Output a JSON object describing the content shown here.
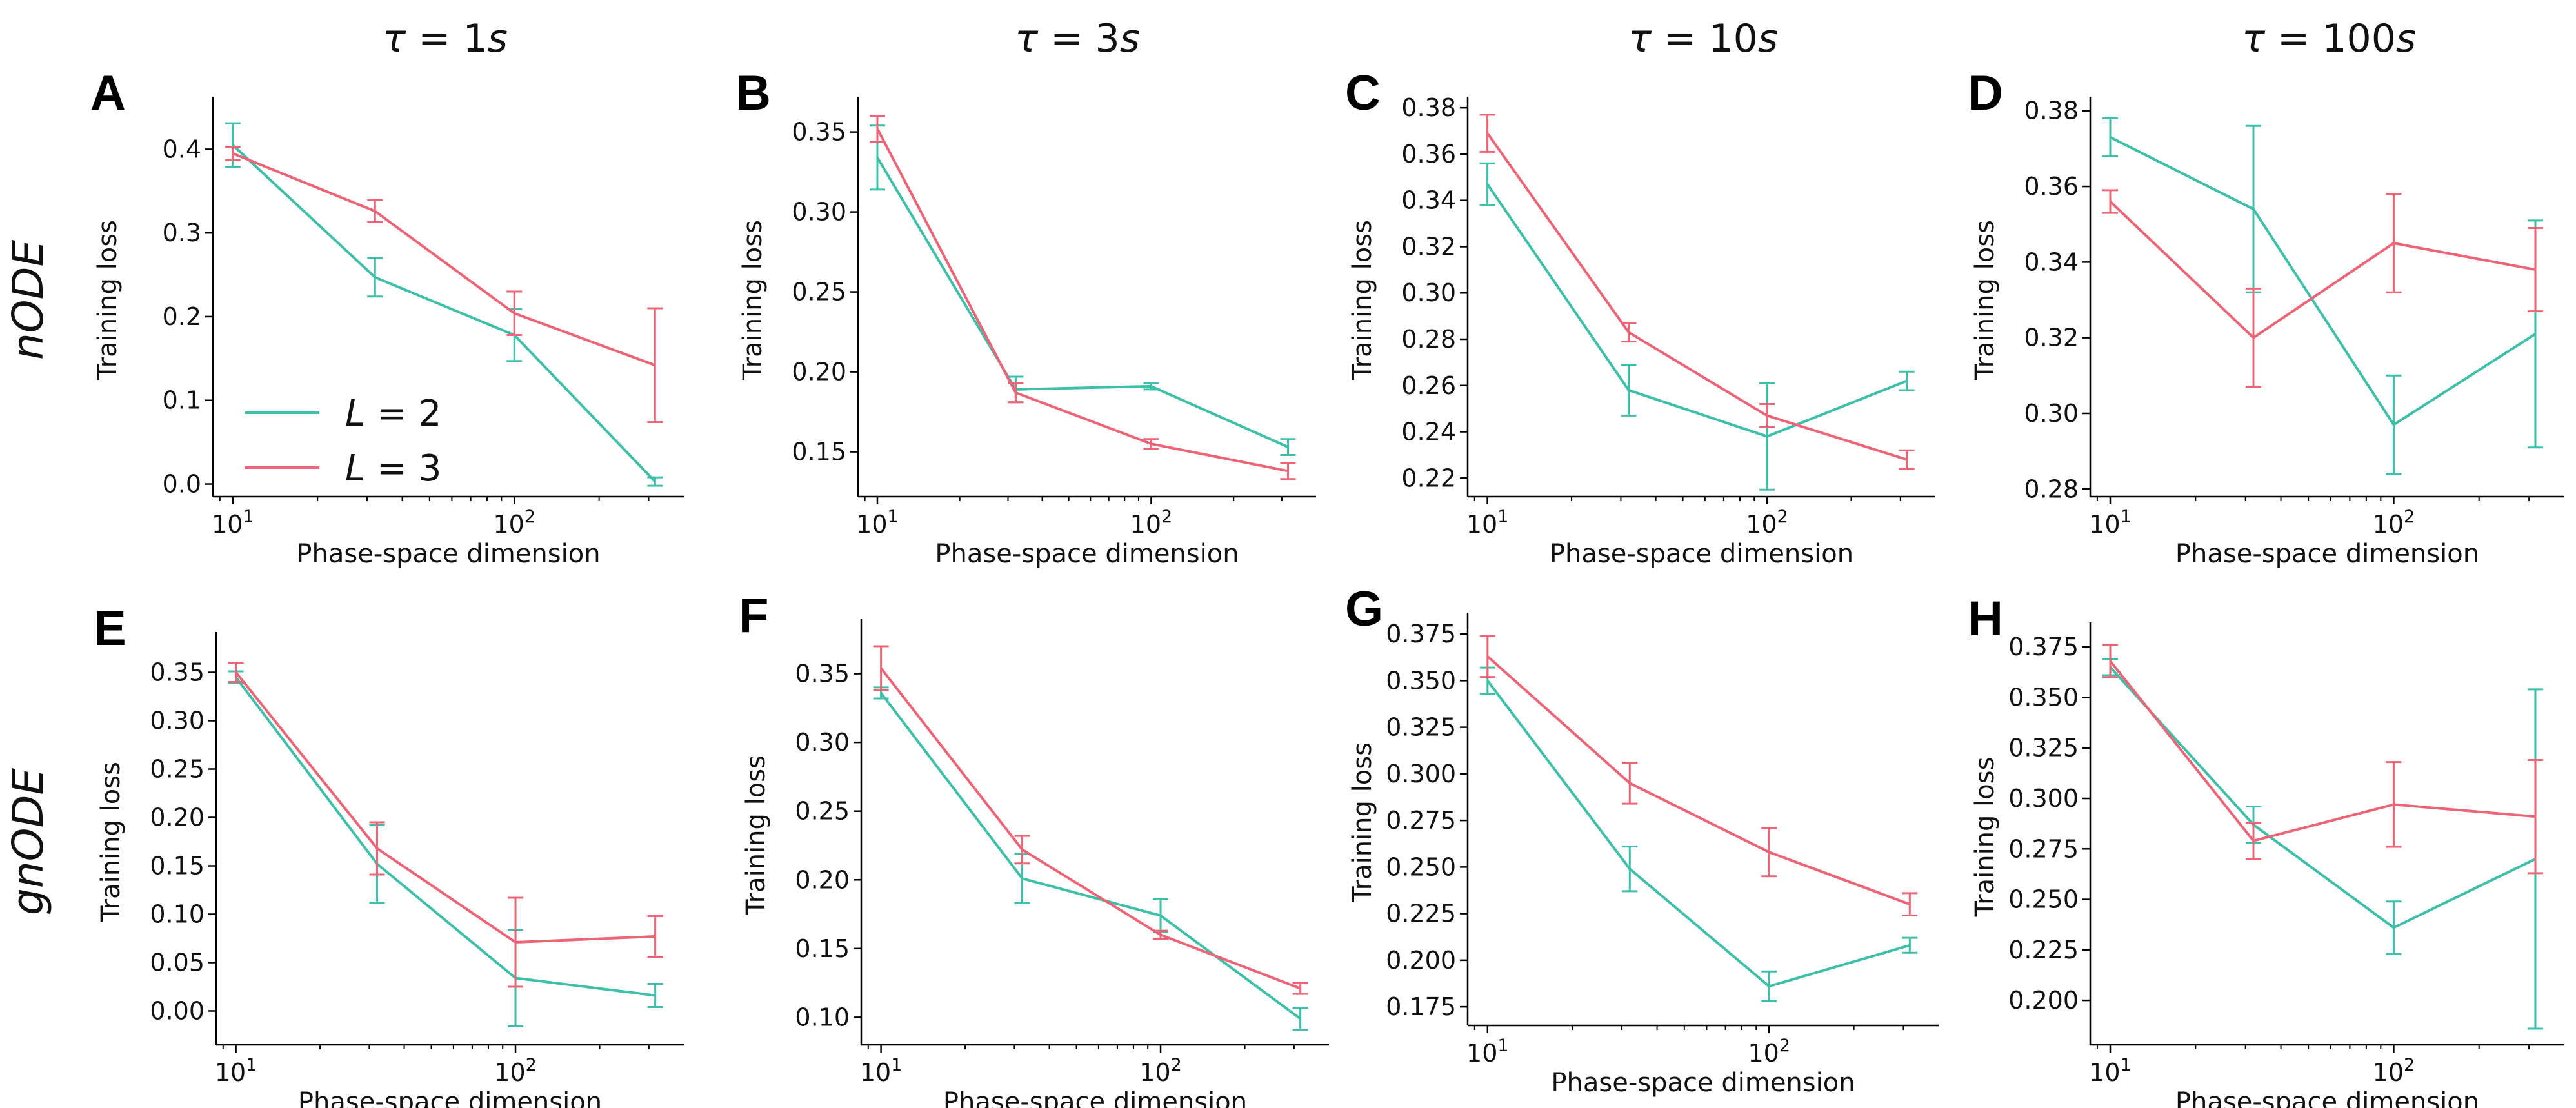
{
  "colors": {
    "series_L2": "#3dbfa8",
    "series_L3": "#ec6476",
    "axis": "#000000"
  },
  "column_titles": [
    {
      "symbol": "τ",
      "rest": " = 1",
      "unit": "s"
    },
    {
      "symbol": "τ",
      "rest": " = 3",
      "unit": "s"
    },
    {
      "symbol": "τ",
      "rest": " = 10",
      "unit": "s"
    },
    {
      "symbol": "τ",
      "rest": " = 100",
      "unit": "s"
    }
  ],
  "row_titles": [
    "nODE",
    "gnODE"
  ],
  "legend": [
    {
      "symbol": "L",
      "rest": " = 2",
      "color_key": "series_L2"
    },
    {
      "symbol": "L",
      "rest": " = 3",
      "color_key": "series_L3"
    }
  ],
  "chart_data": [
    {
      "panel": "A",
      "type": "line",
      "xscale": "log",
      "xlabel": "Phase-space dimension",
      "ylabel": "Training loss",
      "x": [
        10,
        32,
        100,
        316
      ],
      "xlim": [
        8.5,
        400
      ],
      "ylim": [
        -0.015,
        0.455
      ],
      "xticks": [
        {
          "value": 10,
          "exp": "1"
        },
        {
          "value": 100,
          "exp": "2"
        }
      ],
      "yticks": [
        "0.0",
        "0.1",
        "0.2",
        "0.3",
        "0.4"
      ],
      "legend_position": "bottom-left",
      "series": [
        {
          "name": "L = 2",
          "color_key": "series_L2",
          "values": [
            0.405,
            0.247,
            0.178,
            0.003
          ],
          "errors": [
            0.026,
            0.023,
            0.031,
            0.005
          ]
        },
        {
          "name": "L = 3",
          "color_key": "series_L3",
          "values": [
            0.395,
            0.326,
            0.204,
            0.142
          ],
          "errors": [
            0.008,
            0.013,
            0.026,
            0.068
          ]
        }
      ]
    },
    {
      "panel": "B",
      "type": "line",
      "xscale": "log",
      "xlabel": "Phase-space dimension",
      "ylabel": "Training loss",
      "x": [
        10,
        32,
        100,
        316
      ],
      "xlim": [
        8.5,
        400
      ],
      "ylim": [
        0.122,
        0.368
      ],
      "xticks": [
        {
          "value": 10,
          "exp": "1"
        },
        {
          "value": 100,
          "exp": "2"
        }
      ],
      "yticks": [
        "0.15",
        "0.20",
        "0.25",
        "0.30",
        "0.35"
      ],
      "legend_position": "",
      "series": [
        {
          "name": "L = 2",
          "color_key": "series_L2",
          "values": [
            0.334,
            0.189,
            0.191,
            0.153
          ],
          "errors": [
            0.02,
            0.008,
            0.002,
            0.005
          ]
        },
        {
          "name": "L = 3",
          "color_key": "series_L3",
          "values": [
            0.352,
            0.187,
            0.155,
            0.138
          ],
          "errors": [
            0.008,
            0.006,
            0.003,
            0.005
          ]
        }
      ]
    },
    {
      "panel": "C",
      "type": "line",
      "xscale": "log",
      "xlabel": "Phase-space dimension",
      "ylabel": "Training loss",
      "x": [
        10,
        32,
        100,
        316
      ],
      "xlim": [
        8.5,
        400
      ],
      "ylim": [
        0.212,
        0.382
      ],
      "xticks": [
        {
          "value": 10,
          "exp": "1"
        },
        {
          "value": 100,
          "exp": "2"
        }
      ],
      "yticks": [
        "0.22",
        "0.24",
        "0.26",
        "0.28",
        "0.30",
        "0.32",
        "0.34",
        "0.36",
        "0.38"
      ],
      "legend_position": "",
      "series": [
        {
          "name": "L = 2",
          "color_key": "series_L2",
          "values": [
            0.347,
            0.258,
            0.238,
            0.262
          ],
          "errors": [
            0.009,
            0.011,
            0.023,
            0.004
          ]
        },
        {
          "name": "L = 3",
          "color_key": "series_L3",
          "values": [
            0.369,
            0.283,
            0.247,
            0.228
          ],
          "errors": [
            0.008,
            0.004,
            0.005,
            0.004
          ]
        }
      ]
    },
    {
      "panel": "D",
      "type": "line",
      "xscale": "log",
      "xlabel": "Phase-space dimension",
      "ylabel": "Training loss",
      "x": [
        10,
        32,
        100,
        316
      ],
      "xlim": [
        8.5,
        400
      ],
      "ylim": [
        0.278,
        0.382
      ],
      "xticks": [
        {
          "value": 10,
          "exp": "1"
        },
        {
          "value": 100,
          "exp": "2"
        }
      ],
      "yticks": [
        "0.28",
        "0.30",
        "0.32",
        "0.34",
        "0.36",
        "0.38"
      ],
      "legend_position": "",
      "series": [
        {
          "name": "L = 2",
          "color_key": "series_L2",
          "values": [
            0.373,
            0.354,
            0.297,
            0.321
          ],
          "errors": [
            0.005,
            0.022,
            0.013,
            0.03
          ]
        },
        {
          "name": "L = 3",
          "color_key": "series_L3",
          "values": [
            0.356,
            0.32,
            0.345,
            0.338
          ],
          "errors": [
            0.003,
            0.013,
            0.013,
            0.011
          ]
        }
      ]
    },
    {
      "panel": "E",
      "type": "line",
      "xscale": "log",
      "xlabel": "Phase-space dimension",
      "ylabel": "Training loss",
      "x": [
        10,
        32,
        100,
        316
      ],
      "xlim": [
        8.5,
        400
      ],
      "ylim": [
        -0.035,
        0.385
      ],
      "xticks": [
        {
          "value": 10,
          "exp": "1"
        },
        {
          "value": 100,
          "exp": "2"
        }
      ],
      "yticks": [
        "0.00",
        "0.05",
        "0.10",
        "0.15",
        "0.20",
        "0.25",
        "0.30",
        "0.35"
      ],
      "legend_position": "",
      "series": [
        {
          "name": "L = 2",
          "color_key": "series_L2",
          "values": [
            0.345,
            0.152,
            0.034,
            0.016
          ],
          "errors": [
            0.006,
            0.04,
            0.05,
            0.012
          ]
        },
        {
          "name": "L = 3",
          "color_key": "series_L3",
          "values": [
            0.35,
            0.168,
            0.071,
            0.077
          ],
          "errors": [
            0.01,
            0.027,
            0.046,
            0.021
          ]
        }
      ]
    },
    {
      "panel": "F",
      "type": "line",
      "xscale": "log",
      "xlabel": "Phase-space dimension",
      "ylabel": "Training loss",
      "x": [
        10,
        32,
        100,
        316
      ],
      "xlim": [
        8.5,
        400
      ],
      "ylim": [
        0.08,
        0.385
      ],
      "xticks": [
        {
          "value": 10,
          "exp": "1"
        },
        {
          "value": 100,
          "exp": "2"
        }
      ],
      "yticks": [
        "0.10",
        "0.15",
        "0.20",
        "0.25",
        "0.30",
        "0.35"
      ],
      "legend_position": "",
      "series": [
        {
          "name": "L = 2",
          "color_key": "series_L2",
          "values": [
            0.336,
            0.201,
            0.174,
            0.099
          ],
          "errors": [
            0.004,
            0.018,
            0.012,
            0.008
          ]
        },
        {
          "name": "L = 3",
          "color_key": "series_L3",
          "values": [
            0.354,
            0.222,
            0.16,
            0.121
          ],
          "errors": [
            0.016,
            0.01,
            0.003,
            0.004
          ]
        }
      ]
    },
    {
      "panel": "G",
      "type": "line",
      "xscale": "log",
      "xlabel": "Phase-space dimension",
      "ylabel": "Training loss",
      "x": [
        10,
        32,
        100,
        316
      ],
      "xlim": [
        8.5,
        400
      ],
      "ylim": [
        0.165,
        0.383
      ],
      "xticks": [
        {
          "value": 10,
          "exp": "1"
        },
        {
          "value": 100,
          "exp": "2"
        }
      ],
      "yticks": [
        "0.175",
        "0.200",
        "0.225",
        "0.250",
        "0.275",
        "0.300",
        "0.325",
        "0.350",
        "0.375"
      ],
      "legend_position": "",
      "series": [
        {
          "name": "L = 2",
          "color_key": "series_L2",
          "values": [
            0.35,
            0.249,
            0.186,
            0.208
          ],
          "errors": [
            0.007,
            0.012,
            0.008,
            0.004
          ]
        },
        {
          "name": "L = 3",
          "color_key": "series_L3",
          "values": [
            0.363,
            0.295,
            0.258,
            0.23
          ],
          "errors": [
            0.011,
            0.011,
            0.013,
            0.006
          ]
        }
      ]
    },
    {
      "panel": "H",
      "type": "line",
      "xscale": "log",
      "xlabel": "Phase-space dimension",
      "ylabel": "Training loss",
      "x": [
        10,
        32,
        100,
        316
      ],
      "xlim": [
        8.5,
        400
      ],
      "ylim": [
        0.178,
        0.384
      ],
      "xticks": [
        {
          "value": 10,
          "exp": "1"
        },
        {
          "value": 100,
          "exp": "2"
        }
      ],
      "yticks": [
        "0.200",
        "0.225",
        "0.250",
        "0.275",
        "0.300",
        "0.325",
        "0.350",
        "0.375"
      ],
      "legend_position": "",
      "series": [
        {
          "name": "L = 2",
          "color_key": "series_L2",
          "values": [
            0.365,
            0.287,
            0.236,
            0.27
          ],
          "errors": [
            0.004,
            0.009,
            0.013,
            0.084
          ]
        },
        {
          "name": "L = 3",
          "color_key": "series_L3",
          "values": [
            0.368,
            0.279,
            0.297,
            0.291
          ],
          "errors": [
            0.008,
            0.009,
            0.021,
            0.028
          ]
        }
      ]
    }
  ]
}
